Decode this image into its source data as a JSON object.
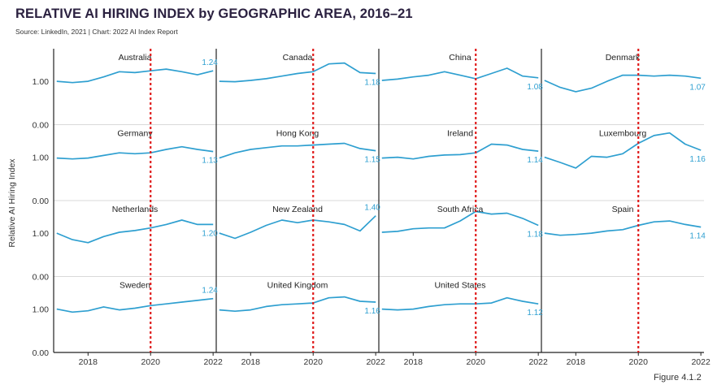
{
  "title": "RELATIVE AI HIRING INDEX by GEOGRAPHIC AREA, 2016–21",
  "source": "Source: LinkedIn, 2021 | Chart: 2022 AI Index Report",
  "ylabel": "Relative AI Hiring Index",
  "figure_label": "Figure 4.1.2",
  "colors": {
    "line": "#2e9fd0",
    "value_label": "#2e9fd0",
    "marker": "#e01b1b",
    "frame": "#222222",
    "grid": "#cccccc"
  },
  "chart_data": {
    "type": "line",
    "layout": "small-multiples",
    "title": "RELATIVE AI HIRING INDEX by GEOGRAPHIC AREA, 2016–21",
    "ylabel": "Relative AI Hiring Index",
    "xlim": [
      2016.9,
      2022.1
    ],
    "ylim": [
      0,
      1.75
    ],
    "yticks": [
      0.0,
      1.0
    ],
    "ytick_labels": [
      "0.00",
      "1.00"
    ],
    "xticks": [
      2018,
      2020,
      2022
    ],
    "xtick_labels": [
      "2018",
      "2020",
      "2022"
    ],
    "reference_line": {
      "x": 2020,
      "style": "dotted",
      "color": "#e01b1b"
    },
    "x": [
      2017.0,
      2017.5,
      2018.0,
      2018.5,
      2019.0,
      2019.5,
      2020.0,
      2020.5,
      2021.0,
      2021.5,
      2022.0
    ],
    "panels": [
      {
        "name": "Australia",
        "final_label": "1.24",
        "values": [
          1.0,
          0.97,
          1.0,
          1.1,
          1.22,
          1.2,
          1.24,
          1.28,
          1.22,
          1.15,
          1.24
        ]
      },
      {
        "name": "Canada",
        "final_label": "1.18",
        "values": [
          1.0,
          0.99,
          1.02,
          1.06,
          1.12,
          1.18,
          1.22,
          1.4,
          1.42,
          1.2,
          1.18
        ]
      },
      {
        "name": "China",
        "final_label": "1.08",
        "values": [
          1.02,
          1.05,
          1.1,
          1.14,
          1.22,
          1.14,
          1.06,
          1.18,
          1.3,
          1.12,
          1.08
        ]
      },
      {
        "name": "Denmark",
        "final_label": "1.07",
        "values": [
          1.02,
          0.86,
          0.76,
          0.84,
          1.0,
          1.14,
          1.14,
          1.12,
          1.14,
          1.12,
          1.07
        ]
      },
      {
        "name": "Germany",
        "final_label": "1.13",
        "values": [
          0.98,
          0.96,
          0.98,
          1.04,
          1.1,
          1.08,
          1.1,
          1.18,
          1.24,
          1.18,
          1.13
        ]
      },
      {
        "name": "Hong Kong",
        "final_label": "1.15",
        "values": [
          0.98,
          1.1,
          1.18,
          1.22,
          1.26,
          1.26,
          1.28,
          1.3,
          1.32,
          1.2,
          1.15
        ]
      },
      {
        "name": "Ireland",
        "final_label": "1.14",
        "values": [
          0.98,
          1.0,
          0.96,
          1.02,
          1.05,
          1.06,
          1.1,
          1.3,
          1.28,
          1.18,
          1.14
        ]
      },
      {
        "name": "Luxembourg",
        "final_label": "1.16",
        "values": [
          1.0,
          0.88,
          0.75,
          1.02,
          1.0,
          1.08,
          1.32,
          1.5,
          1.56,
          1.3,
          1.16
        ]
      },
      {
        "name": "Netherlands",
        "final_label": "1.20",
        "values": [
          1.0,
          0.85,
          0.78,
          0.92,
          1.02,
          1.06,
          1.12,
          1.2,
          1.3,
          1.2,
          1.2
        ]
      },
      {
        "name": "New Zealand",
        "final_label": "1.40",
        "values": [
          1.0,
          0.88,
          1.02,
          1.18,
          1.3,
          1.24,
          1.3,
          1.26,
          1.2,
          1.05,
          1.4
        ]
      },
      {
        "name": "South Africa",
        "final_label": "1.18",
        "values": [
          1.02,
          1.04,
          1.1,
          1.12,
          1.12,
          1.28,
          1.5,
          1.44,
          1.46,
          1.34,
          1.18
        ]
      },
      {
        "name": "Spain",
        "final_label": "1.14",
        "values": [
          1.0,
          0.95,
          0.97,
          1.0,
          1.05,
          1.08,
          1.18,
          1.26,
          1.28,
          1.2,
          1.14
        ]
      },
      {
        "name": "Sweden",
        "final_label": "1.24",
        "values": [
          1.0,
          0.93,
          0.96,
          1.05,
          0.98,
          1.02,
          1.08,
          1.12,
          1.16,
          1.2,
          1.24
        ]
      },
      {
        "name": "United Kingdom",
        "final_label": "1.16",
        "values": [
          0.98,
          0.95,
          0.98,
          1.06,
          1.1,
          1.12,
          1.14,
          1.26,
          1.28,
          1.18,
          1.16
        ]
      },
      {
        "name": "United States",
        "final_label": "1.12",
        "values": [
          1.0,
          0.98,
          1.0,
          1.06,
          1.1,
          1.12,
          1.12,
          1.14,
          1.26,
          1.18,
          1.12
        ]
      }
    ]
  }
}
